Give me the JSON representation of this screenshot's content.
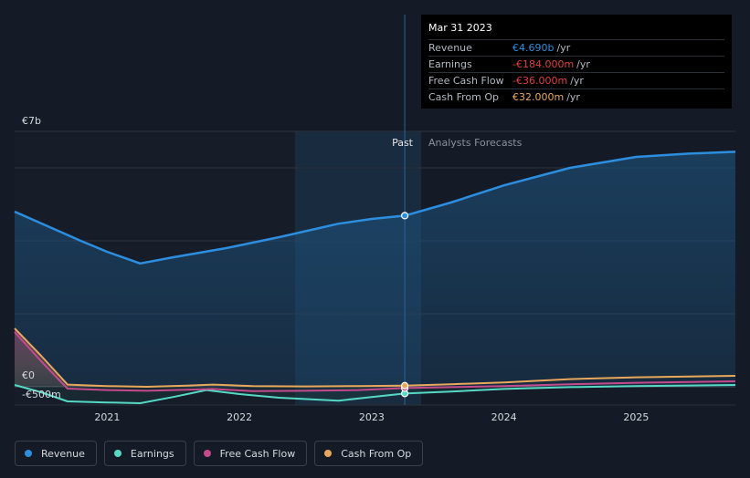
{
  "chart_data": {
    "type": "area",
    "title": "",
    "y_axis": {
      "unit": "EUR",
      "ylim": [
        -500,
        7000
      ],
      "labels": [
        "€7b",
        "€0",
        "-€500m"
      ],
      "gridlines": [
        0,
        2000,
        4000,
        6000
      ]
    },
    "x_axis": {
      "tick_labels": [
        "2021",
        "2022",
        "2023",
        "2024",
        "2025"
      ],
      "tick_values": [
        2021,
        2022,
        2023,
        2024,
        2025
      ],
      "xlim": [
        2020.3,
        2025.75
      ]
    },
    "divider": {
      "x": 2023.25,
      "past_label": "Past",
      "forecast_label": "Analysts Forecasts"
    },
    "series": [
      {
        "name": "Revenue",
        "color": "#2d8ee0",
        "points": [
          [
            2020.3,
            4800
          ],
          [
            2020.8,
            4000
          ],
          [
            2021.0,
            3700
          ],
          [
            2021.25,
            3380
          ],
          [
            2021.5,
            3550
          ],
          [
            2021.9,
            3800
          ],
          [
            2022.3,
            4100
          ],
          [
            2022.75,
            4470
          ],
          [
            2023.0,
            4600
          ],
          [
            2023.25,
            4690
          ],
          [
            2023.6,
            5050
          ],
          [
            2024.0,
            5520
          ],
          [
            2024.5,
            6000
          ],
          [
            2025.0,
            6300
          ],
          [
            2025.4,
            6390
          ],
          [
            2025.75,
            6440
          ]
        ]
      },
      {
        "name": "Earnings",
        "color": "#56d9c4",
        "points": [
          [
            2020.3,
            50
          ],
          [
            2020.5,
            -150
          ],
          [
            2020.7,
            -400
          ],
          [
            2021.0,
            -430
          ],
          [
            2021.25,
            -450
          ],
          [
            2021.5,
            -280
          ],
          [
            2021.75,
            -90
          ],
          [
            2022.0,
            -200
          ],
          [
            2022.3,
            -300
          ],
          [
            2022.75,
            -380
          ],
          [
            2023.0,
            -280
          ],
          [
            2023.25,
            -184
          ],
          [
            2023.6,
            -130
          ],
          [
            2024.0,
            -60
          ],
          [
            2024.5,
            -10
          ],
          [
            2025.0,
            20
          ],
          [
            2025.75,
            50
          ]
        ]
      },
      {
        "name": "Free Cash Flow",
        "color": "#c34b8c",
        "points": [
          [
            2020.3,
            1500
          ],
          [
            2020.5,
            700
          ],
          [
            2020.7,
            -50
          ],
          [
            2021.0,
            -90
          ],
          [
            2021.3,
            -110
          ],
          [
            2021.6,
            -80
          ],
          [
            2021.8,
            -60
          ],
          [
            2022.1,
            -120
          ],
          [
            2022.5,
            -110
          ],
          [
            2022.9,
            -90
          ],
          [
            2023.25,
            -36
          ],
          [
            2023.6,
            -10
          ],
          [
            2024.0,
            20
          ],
          [
            2024.5,
            70
          ],
          [
            2025.0,
            110
          ],
          [
            2025.75,
            150
          ]
        ]
      },
      {
        "name": "Cash From Op",
        "color": "#e8a85c",
        "points": [
          [
            2020.3,
            1600
          ],
          [
            2020.5,
            850
          ],
          [
            2020.7,
            60
          ],
          [
            2021.0,
            20
          ],
          [
            2021.3,
            0
          ],
          [
            2021.6,
            30
          ],
          [
            2021.8,
            60
          ],
          [
            2022.1,
            20
          ],
          [
            2022.5,
            10
          ],
          [
            2022.9,
            20
          ],
          [
            2023.25,
            32
          ],
          [
            2023.6,
            70
          ],
          [
            2024.0,
            120
          ],
          [
            2024.5,
            210
          ],
          [
            2025.0,
            260
          ],
          [
            2025.75,
            300
          ]
        ]
      }
    ]
  },
  "tooltip": {
    "date": "Mar 31 2023",
    "rows": [
      {
        "label": "Revenue",
        "value": "€4.690b",
        "unit": "/yr",
        "color": "#2d8ee0"
      },
      {
        "label": "Earnings",
        "value": "-€184.000m",
        "unit": "/yr",
        "color": "#e0403f"
      },
      {
        "label": "Free Cash Flow",
        "value": "-€36.000m",
        "unit": "/yr",
        "color": "#e0403f"
      },
      {
        "label": "Cash From Op",
        "value": "€32.000m",
        "unit": "/yr",
        "color": "#e8a85c"
      }
    ]
  },
  "legend": [
    {
      "label": "Revenue",
      "color": "#2d8ee0"
    },
    {
      "label": "Earnings",
      "color": "#56d9c4"
    },
    {
      "label": "Free Cash Flow",
      "color": "#c34b8c"
    },
    {
      "label": "Cash From Op",
      "color": "#e8a85c"
    }
  ]
}
